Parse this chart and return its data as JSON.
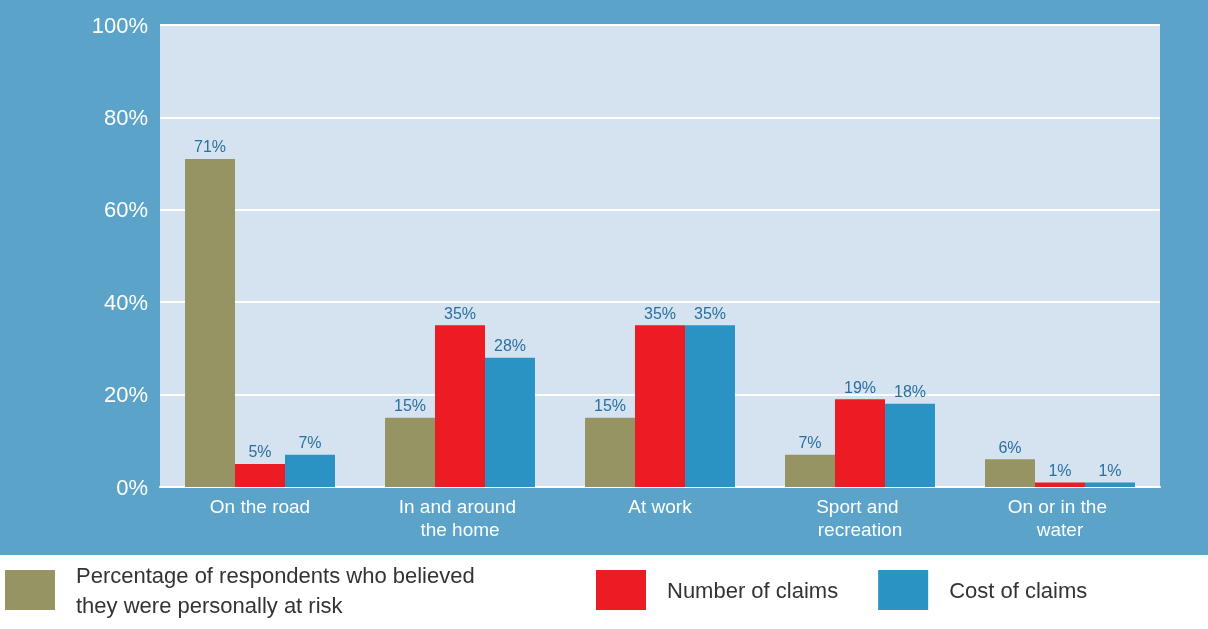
{
  "chart_data": {
    "type": "bar",
    "categories": [
      "On the road",
      "In and around the home",
      "At work",
      "Sport and recreation",
      "On or in the water"
    ],
    "series": [
      {
        "name": "Percentage of respondents who believed they were personally at risk",
        "color": "#969462",
        "values": [
          71,
          15,
          15,
          7,
          6
        ],
        "value_labels": [
          "71%",
          "15%",
          "15%",
          "7%",
          "6%"
        ]
      },
      {
        "name": "Number of claims",
        "color": "#ed1c24",
        "values": [
          5,
          35,
          35,
          19,
          1
        ],
        "value_labels": [
          "5%",
          "35%",
          "35%",
          "19%",
          "1%"
        ]
      },
      {
        "name": "Cost of claims",
        "color": "#2a93c4",
        "values": [
          7,
          28,
          35,
          18,
          1
        ],
        "value_labels": [
          "7%",
          "28%",
          "35%",
          "18%",
          "1%"
        ]
      }
    ],
    "ylim": [
      0,
      100
    ],
    "yticks": [
      {
        "value": 0,
        "label": "0%"
      },
      {
        "value": 20,
        "label": "20%"
      },
      {
        "value": 40,
        "label": "40%"
      },
      {
        "value": 60,
        "label": "60%"
      },
      {
        "value": 80,
        "label": "80%"
      },
      {
        "value": 100,
        "label": "100%"
      }
    ],
    "grid": "y",
    "legend": "bottom"
  }
}
